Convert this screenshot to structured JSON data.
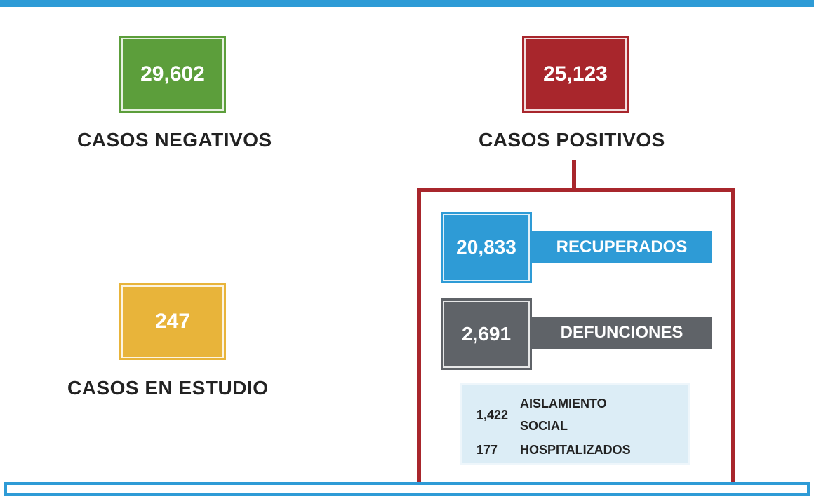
{
  "colors": {
    "accent_blue": "#2e9bd6",
    "negative_green": "#5c9e3b",
    "positive_red": "#a8262c",
    "study_yellow": "#e8b43a",
    "deaths_gray": "#5f6368",
    "detail_bg": "#dcedf6"
  },
  "negativos": {
    "value": "29,602",
    "label": "CASOS NEGATIVOS"
  },
  "positivos": {
    "value": "25,123",
    "label": "CASOS POSITIVOS"
  },
  "estudio": {
    "value": "247",
    "label": "CASOS EN ESTUDIO"
  },
  "recuperados": {
    "value": "20,833",
    "label": "RECUPERADOS"
  },
  "defunciones": {
    "value": "2,691",
    "label": "DEFUNCIONES"
  },
  "detalle": {
    "aislamiento_value": "1,422",
    "aislamiento_label_line1": "AISLAMIENTO",
    "aislamiento_label_line2": "SOCIAL",
    "hospitalizados_value": "177",
    "hospitalizados_label": "HOSPITALIZADOS"
  }
}
